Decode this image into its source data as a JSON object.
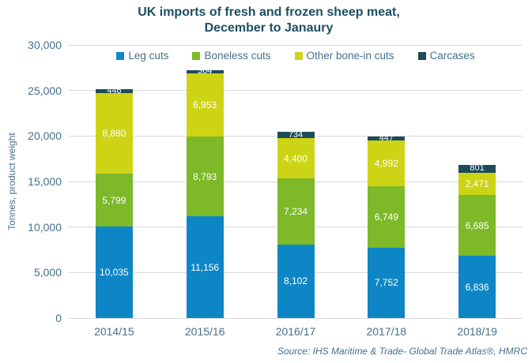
{
  "title": {
    "line1": "UK imports of fresh and frozen sheep meat,",
    "line2": "December to Janaury"
  },
  "source": "Source: IHS Maritime & Trade- Global Trade Atlas®, HMRC",
  "colors": {
    "background": "#ffffff",
    "title": "#1c4e63",
    "axis_text": "#44708c",
    "gridline": "#d9d9d9",
    "bar_label": "#ffffff",
    "leg_cuts": "#0e86c5",
    "boneless_cuts": "#7db928",
    "other_bone_in_cuts": "#cdd415",
    "carcases": "#1e4b5a"
  },
  "chart_data": {
    "type": "bar",
    "stacked": true,
    "title": "UK imports of fresh and frozen sheep meat, December to Janaury",
    "ylabel": "Tonnes, product weight",
    "xlabel": "",
    "ylim": [
      0,
      30000
    ],
    "ytick_step": 5000,
    "ytick_labels": [
      "0",
      "5,000",
      "10,000",
      "15,000",
      "20,000",
      "25,000",
      "30,000"
    ],
    "grid": true,
    "legend_position": "top",
    "categories": [
      "2014/15",
      "2015/16",
      "2016/17",
      "2017/18",
      "2018/19"
    ],
    "series": [
      {
        "name": "Leg cuts",
        "color": "#0e86c5",
        "values": [
          10035,
          11156,
          8102,
          7752,
          6836
        ],
        "labels": [
          "10,035",
          "11,156",
          "8,102",
          "7,752",
          "6,836"
        ]
      },
      {
        "name": "Boneless cuts",
        "color": "#7db928",
        "values": [
          5799,
          8793,
          7234,
          6749,
          6685
        ],
        "labels": [
          "5,799",
          "8,793",
          "7,234",
          "6,749",
          "6,685"
        ]
      },
      {
        "name": "Other bone-in cuts",
        "color": "#cdd415",
        "values": [
          8880,
          6953,
          4400,
          4992,
          2471
        ],
        "labels": [
          "8,880",
          "6,953",
          "4,400",
          "4,992",
          "2,471"
        ]
      },
      {
        "name": "Carcases",
        "color": "#1e4b5a",
        "values": [
          446,
          364,
          734,
          447,
          801
        ],
        "labels": [
          "446",
          "364",
          "734",
          "447",
          "801"
        ]
      }
    ]
  }
}
